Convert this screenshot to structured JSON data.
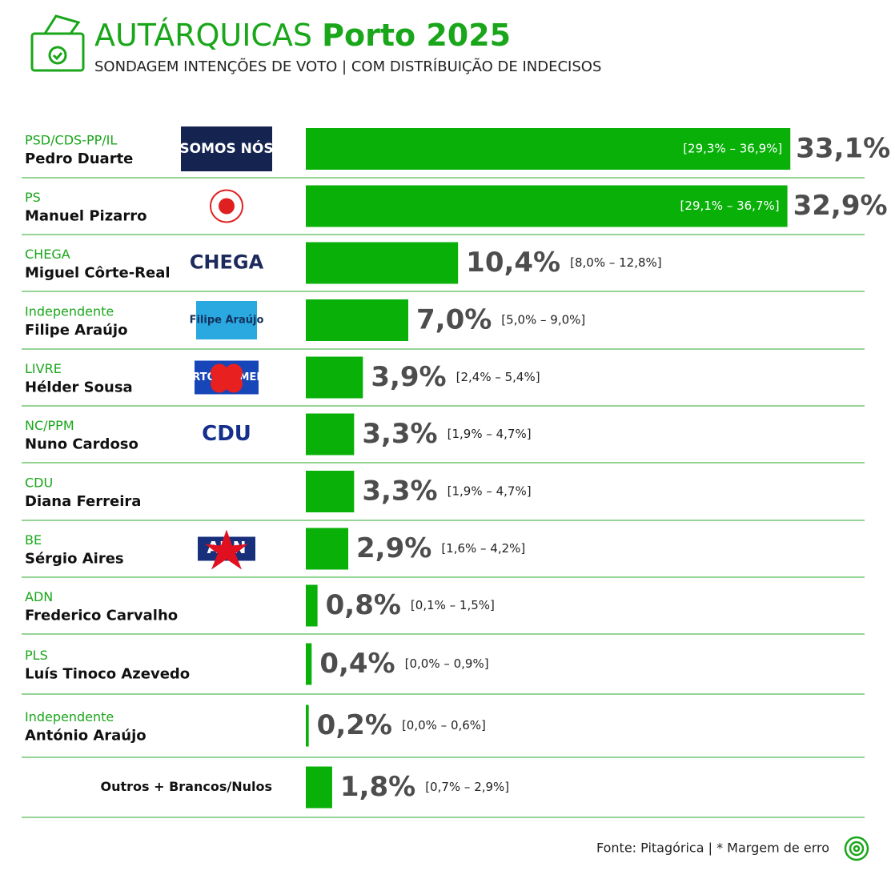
{
  "chart_data": {
    "type": "bar",
    "orientation": "horizontal",
    "title": [
      "AUTÁRQUICAS",
      "Porto 2025"
    ],
    "subtitle": "SONDAGEM INTENÇÕES DE VOTO | COM DISTRÍBUIÇÃO DE INDECISOS",
    "parties": [
      "PSD/CDS-PP/IL",
      "PS",
      "CHEGA",
      "Independente",
      "LIVRE",
      "NC/PPM",
      "CDU",
      "BE",
      "ADN",
      "PLS",
      "Independente",
      null
    ],
    "categories": [
      "Pedro Duarte",
      "Manuel Pizarro",
      "Miguel Côrte-Real",
      "Filipe Araújo",
      "Hélder Sousa",
      "Nuno Cardoso",
      "Diana Ferreira",
      "Sérgio Aires",
      "Frederico Carvalho",
      "Luís Tinoco Azevedo",
      "António Araújo",
      "Outros + Brancos/Nulos"
    ],
    "logos": [
      "SOMOS NÓS",
      null,
      "CHEGA",
      "Filipe Araújo",
      "PORTO PRIMEIRO",
      "CDU",
      null,
      "ADN",
      null,
      null,
      null,
      null
    ],
    "values": [
      33.1,
      32.9,
      10.4,
      7.0,
      3.9,
      3.3,
      3.3,
      2.9,
      0.8,
      0.4,
      0.2,
      1.8
    ],
    "value_labels": [
      "33,1%",
      "32,9%",
      "10,4%",
      "7,0%",
      "3,9%",
      "3,3%",
      "3,3%",
      "2,9%",
      "0,8%",
      "0,4%",
      "0,2%",
      "1,8%"
    ],
    "intervals": [
      "[29,3% – 36,9%]",
      "[29,1% – 36,7%]",
      "[8,0% – 12,8%]",
      "[5,0% – 9,0%]",
      "[2,4% – 5,4%]",
      "[1,9% – 4,7%]",
      "[1,9% – 4,7%]",
      "[1,6% – 4,2%]",
      "[0,1% – 1,5%]",
      "[0,0% – 0,9%]",
      "[0,0% – 0,6%]",
      "[0,7% – 2,9%]"
    ],
    "color": "#08b008",
    "xlim": [
      0,
      35
    ],
    "source": "Fonte: Pitagórica | * Margem de erro"
  }
}
